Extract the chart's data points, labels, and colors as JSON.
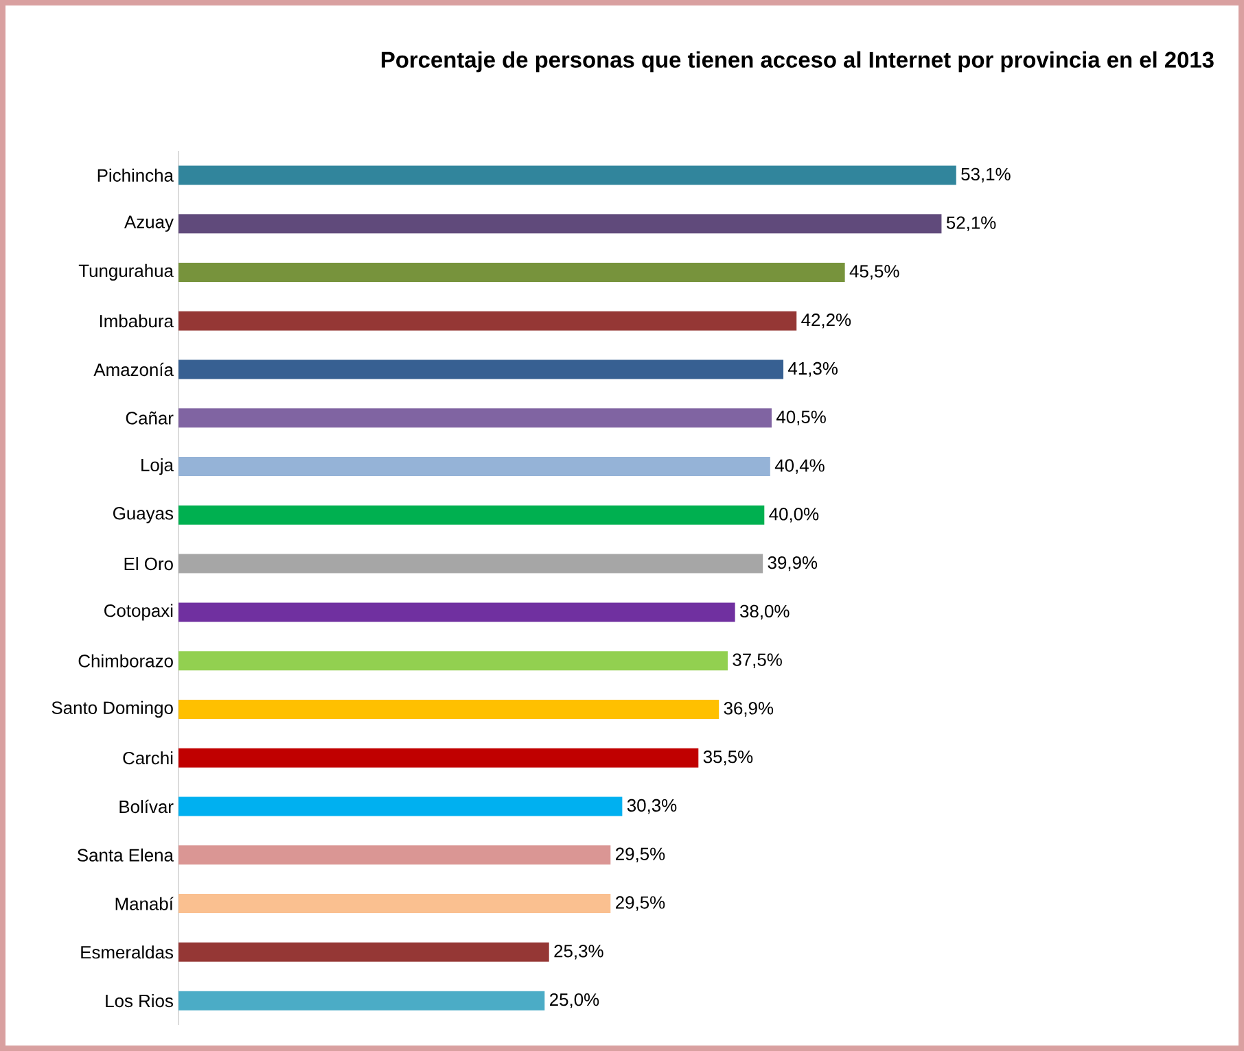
{
  "chart_data": {
    "type": "bar",
    "orientation": "horizontal",
    "title": "Porcentaje de personas que tienen acceso al Internet  por provincia en el 2013",
    "categories": [
      "Pichincha",
      "Azuay",
      "Tungurahua",
      "Imbabura",
      "Amazonía",
      "Cañar",
      "Loja",
      "Guayas",
      "El Oro",
      "Cotopaxi",
      "Chimborazo",
      "Santo Domingo",
      "Carchi",
      "Bolívar",
      "Santa Elena",
      "Manabí",
      "Esmeraldas",
      "Los Rios"
    ],
    "values": [
      53.1,
      52.1,
      45.5,
      42.2,
      41.3,
      40.5,
      40.4,
      40.0,
      39.9,
      38.0,
      37.5,
      36.9,
      35.5,
      30.3,
      29.5,
      29.5,
      25.3,
      25.0
    ],
    "value_labels": [
      "53,1%",
      "52,1%",
      "45,5%",
      "42,2%",
      "41,3%",
      "40,5%",
      "40,4%",
      "40,0%",
      "39,9%",
      "38,0%",
      "37,5%",
      "36,9%",
      "35,5%",
      "30,3%",
      "29,5%",
      "29,5%",
      "25,3%",
      "25,0%"
    ],
    "colors": [
      "#31859c",
      "#604a7b",
      "#77933c",
      "#953735",
      "#376092",
      "#8064a2",
      "#95b3d7",
      "#00b050",
      "#a6a6a6",
      "#7030a0",
      "#92d050",
      "#ffc000",
      "#c00000",
      "#00b0f0",
      "#da9694",
      "#fac090",
      "#953735",
      "#4bacc6"
    ],
    "grid": false,
    "tick_labels": "y"
  }
}
